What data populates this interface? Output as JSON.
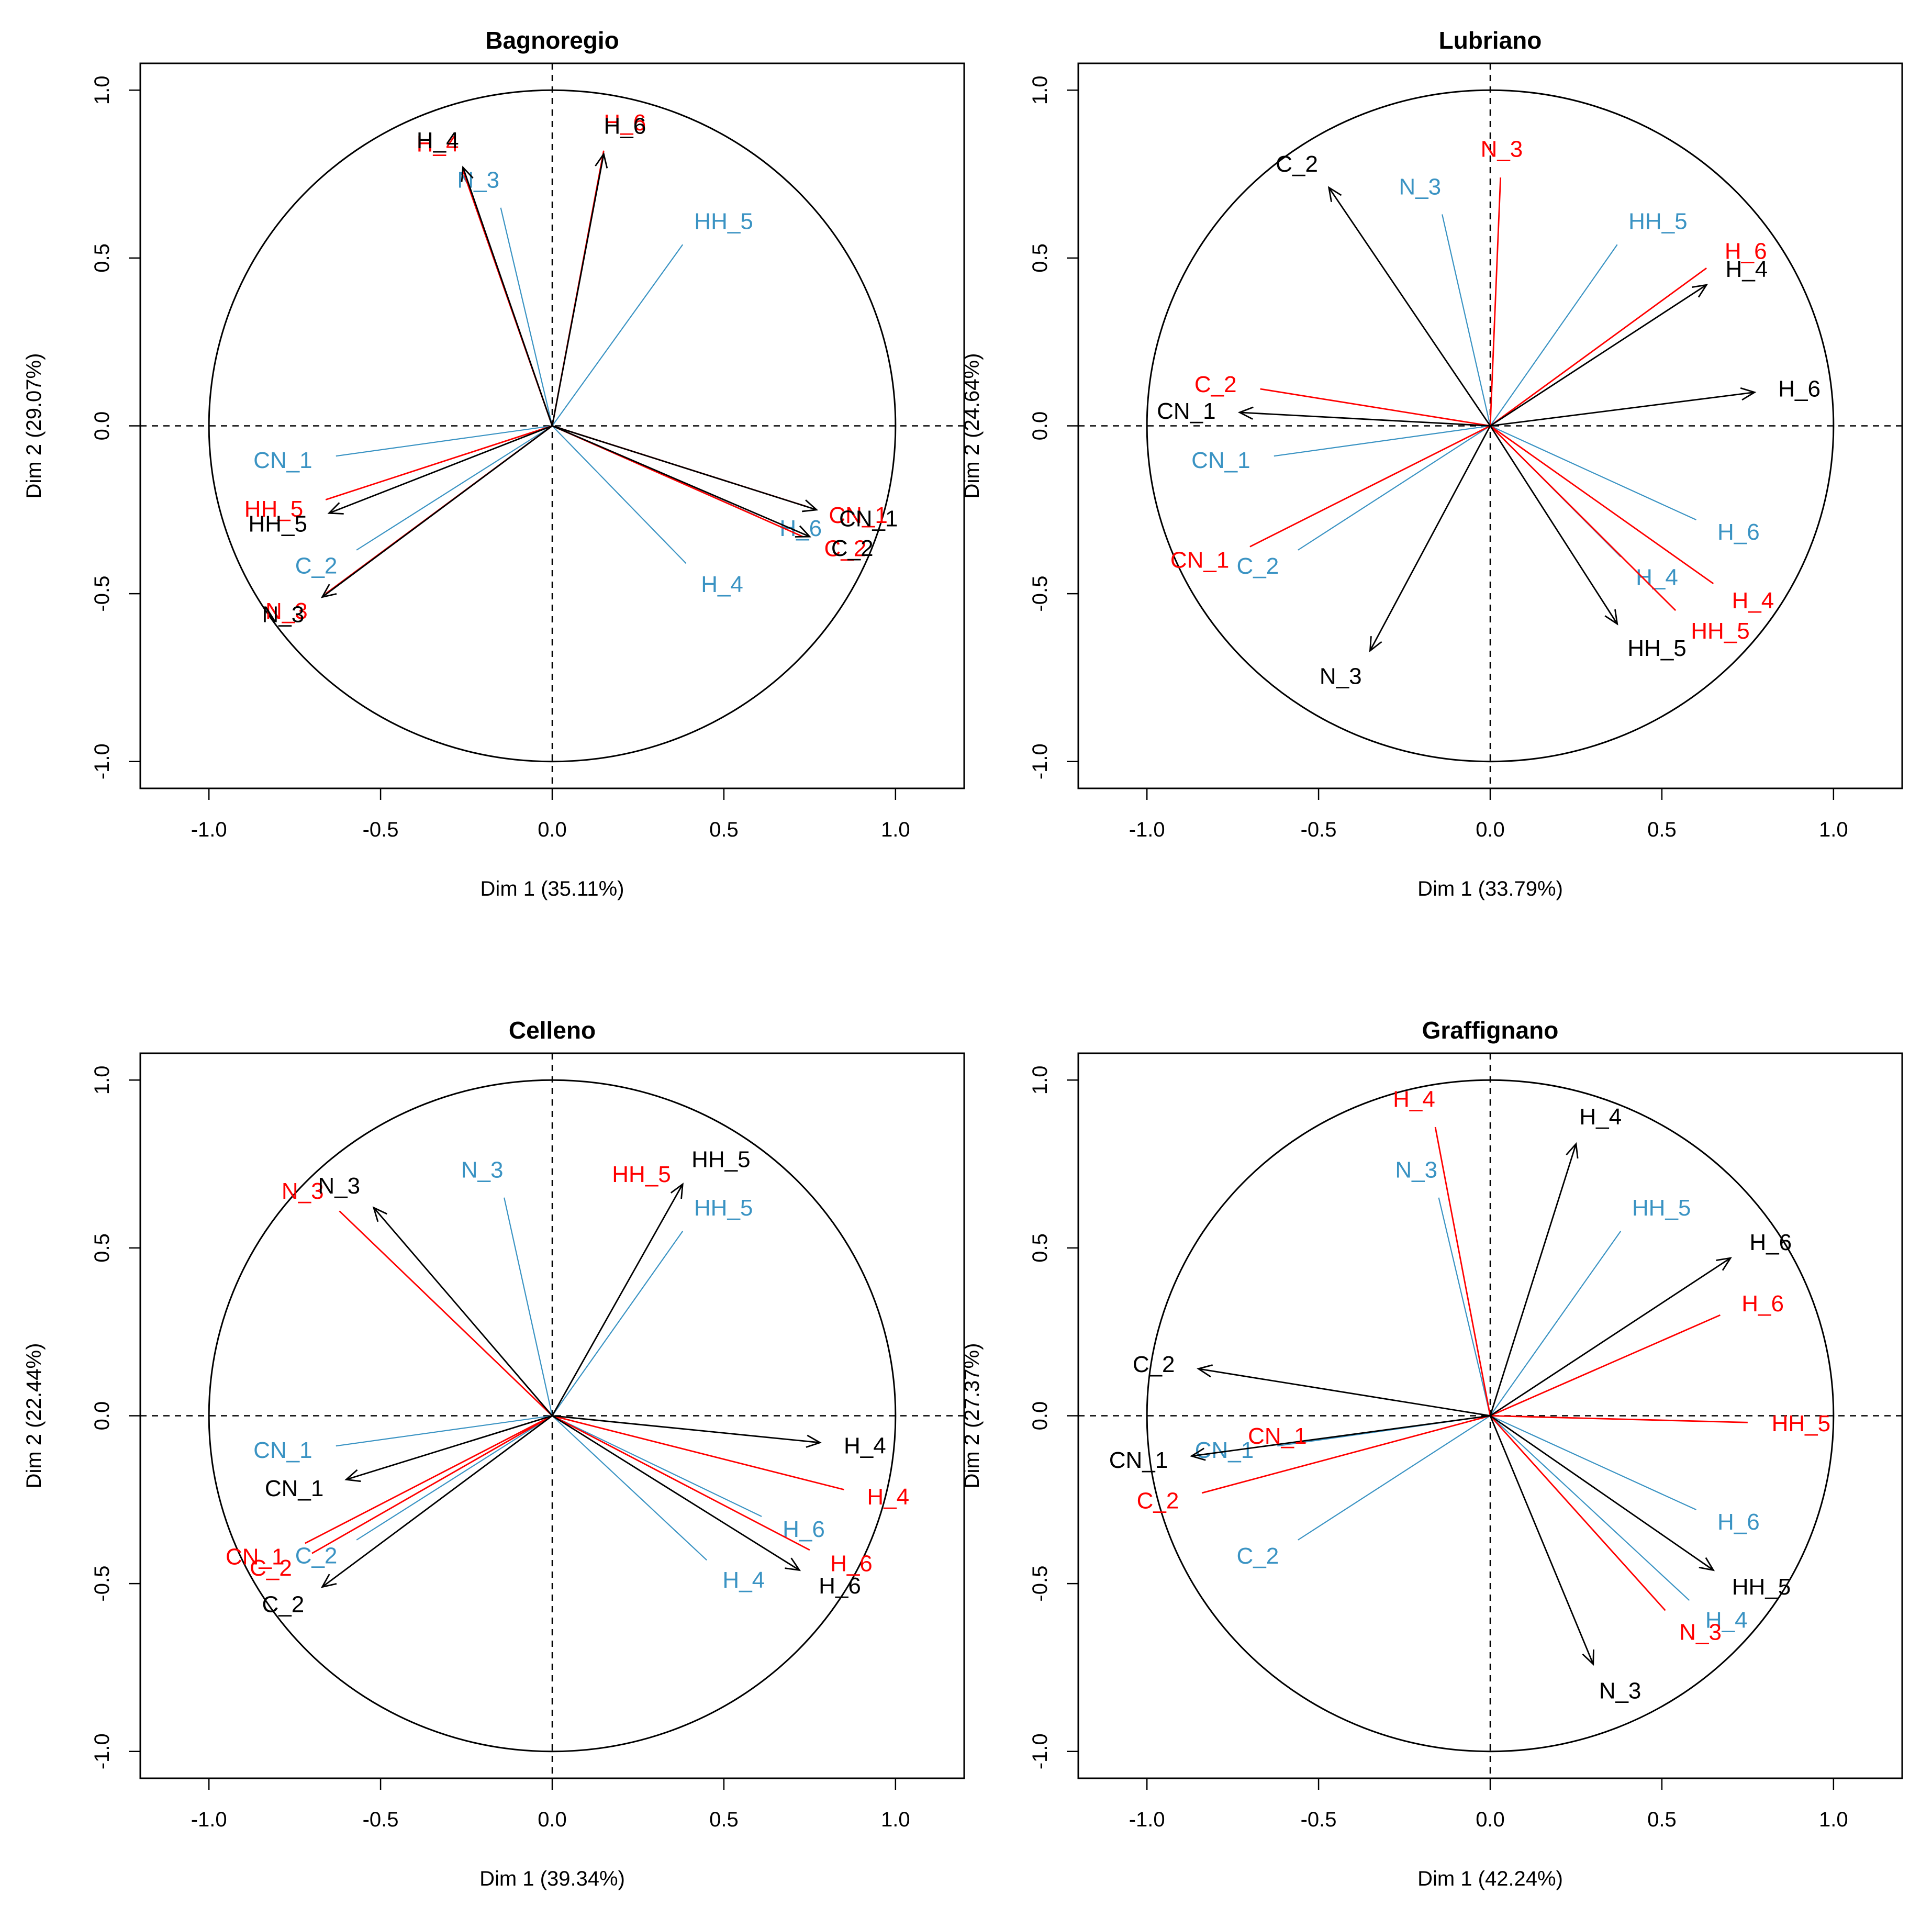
{
  "colors": {
    "series_black": "#000000",
    "series_red": "#ff0000",
    "series_blue": "#3a93c3"
  },
  "chart_data": [
    {
      "type": "scatter",
      "subtype": "pca-variables-factor-map",
      "title": "Bagnoregio",
      "xlabel": "Dim 1 (35.11%)",
      "ylabel": "Dim 2 (29.07%)",
      "xlim": [
        -1.2,
        1.2
      ],
      "ylim": [
        -1.08,
        1.08
      ],
      "xticks": [
        "-1.0",
        "-0.5",
        "0.0",
        "0.5",
        "1.0"
      ],
      "yticks": [
        "-1.0",
        "-0.5",
        "0.0",
        "0.5",
        "1.0"
      ],
      "unit_circle": true,
      "series": [
        {
          "name": "black",
          "color": "#000000",
          "arrows": true,
          "vectors": [
            {
              "label": "H_4",
              "x": -0.26,
              "y": 0.77
            },
            {
              "label": "H_6",
              "x": 0.15,
              "y": 0.81
            },
            {
              "label": "CN_1",
              "x": 0.77,
              "y": -0.25
            },
            {
              "label": "C_2",
              "x": 0.75,
              "y": -0.33
            },
            {
              "label": "HH_5",
              "x": -0.65,
              "y": -0.26
            },
            {
              "label": "N_3",
              "x": -0.67,
              "y": -0.51
            }
          ]
        },
        {
          "name": "red",
          "color": "#ff0000",
          "arrows": false,
          "vectors": [
            {
              "label": "H_4",
              "x": -0.26,
              "y": 0.76
            },
            {
              "label": "H_6",
              "x": 0.15,
              "y": 0.82
            },
            {
              "label": "CN_1",
              "x": 0.74,
              "y": -0.24
            },
            {
              "label": "C_2",
              "x": 0.73,
              "y": -0.33
            },
            {
              "label": "HH_5",
              "x": -0.66,
              "y": -0.22
            },
            {
              "label": "N_3",
              "x": -0.66,
              "y": -0.5
            }
          ]
        },
        {
          "name": "blue",
          "color": "#3a93c3",
          "arrows": false,
          "vectors": [
            {
              "label": "N_3",
              "x": -0.15,
              "y": 0.65
            },
            {
              "label": "HH_5",
              "x": 0.38,
              "y": 0.54
            },
            {
              "label": "CN_1",
              "x": -0.63,
              "y": -0.09
            },
            {
              "label": "C_2",
              "x": -0.57,
              "y": -0.37
            },
            {
              "label": "H_6",
              "x": 0.6,
              "y": -0.27
            },
            {
              "label": "H_4",
              "x": 0.39,
              "y": -0.41
            }
          ]
        }
      ]
    },
    {
      "type": "scatter",
      "subtype": "pca-variables-factor-map",
      "title": "Lubriano",
      "xlabel": "Dim 1 (33.79%)",
      "ylabel": "Dim 2 (24.64%)",
      "xlim": [
        -1.2,
        1.2
      ],
      "ylim": [
        -1.08,
        1.08
      ],
      "xticks": [
        "-1.0",
        "-0.5",
        "0.0",
        "0.5",
        "1.0"
      ],
      "yticks": [
        "-1.0",
        "-0.5",
        "0.0",
        "0.5",
        "1.0"
      ],
      "unit_circle": true,
      "series": [
        {
          "name": "black",
          "color": "#000000",
          "arrows": true,
          "vectors": [
            {
              "label": "C_2",
              "x": -0.47,
              "y": 0.71
            },
            {
              "label": "H_4",
              "x": 0.63,
              "y": 0.42
            },
            {
              "label": "H_6",
              "x": 0.77,
              "y": 0.1
            },
            {
              "label": "CN_1",
              "x": -0.73,
              "y": 0.04
            },
            {
              "label": "HH_5",
              "x": 0.37,
              "y": -0.59
            },
            {
              "label": "N_3",
              "x": -0.35,
              "y": -0.67
            }
          ]
        },
        {
          "name": "red",
          "color": "#ff0000",
          "arrows": false,
          "vectors": [
            {
              "label": "N_3",
              "x": 0.03,
              "y": 0.74
            },
            {
              "label": "H_6",
              "x": 0.63,
              "y": 0.47
            },
            {
              "label": "C_2",
              "x": -0.67,
              "y": 0.11
            },
            {
              "label": "CN_1",
              "x": -0.7,
              "y": -0.36
            },
            {
              "label": "H_4",
              "x": 0.65,
              "y": -0.47
            },
            {
              "label": "HH_5",
              "x": 0.54,
              "y": -0.55
            }
          ]
        },
        {
          "name": "blue",
          "color": "#3a93c3",
          "arrows": false,
          "vectors": [
            {
              "label": "N_3",
              "x": -0.14,
              "y": 0.63
            },
            {
              "label": "HH_5",
              "x": 0.37,
              "y": 0.54
            },
            {
              "label": "CN_1",
              "x": -0.63,
              "y": -0.09
            },
            {
              "label": "C_2",
              "x": -0.56,
              "y": -0.37
            },
            {
              "label": "H_6",
              "x": 0.6,
              "y": -0.28
            },
            {
              "label": "H_4",
              "x": 0.38,
              "y": -0.39
            }
          ]
        }
      ]
    },
    {
      "type": "scatter",
      "subtype": "pca-variables-factor-map",
      "title": "Celleno",
      "xlabel": "Dim 1 (39.34%)",
      "ylabel": "Dim 2 (22.44%)",
      "xlim": [
        -1.2,
        1.2
      ],
      "ylim": [
        -1.08,
        1.08
      ],
      "xticks": [
        "-1.0",
        "-0.5",
        "0.0",
        "0.5",
        "1.0"
      ],
      "yticks": [
        "-1.0",
        "-0.5",
        "0.0",
        "0.5",
        "1.0"
      ],
      "unit_circle": true,
      "series": [
        {
          "name": "black",
          "color": "#000000",
          "arrows": true,
          "vectors": [
            {
              "label": "N_3",
              "x": -0.52,
              "y": 0.62
            },
            {
              "label": "HH_5",
              "x": 0.38,
              "y": 0.69
            },
            {
              "label": "H_4",
              "x": 0.78,
              "y": -0.08
            },
            {
              "label": "CN_1",
              "x": -0.6,
              "y": -0.19
            },
            {
              "label": "C_2",
              "x": -0.67,
              "y": -0.51
            },
            {
              "label": "H_6",
              "x": 0.72,
              "y": -0.46
            }
          ]
        },
        {
          "name": "red",
          "color": "#ff0000",
          "arrows": false,
          "vectors": [
            {
              "label": "N_3",
              "x": -0.62,
              "y": 0.61
            },
            {
              "label": "H_4",
              "x": 0.85,
              "y": -0.22
            },
            {
              "label": "H_6",
              "x": 0.75,
              "y": -0.4
            },
            {
              "label": "CN_1",
              "x": -0.72,
              "y": -0.38
            },
            {
              "label": "C_2",
              "x": -0.7,
              "y": -0.41
            }
          ]
        },
        {
          "name": "blue",
          "color": "#3a93c3",
          "arrows": false,
          "vectors": [
            {
              "label": "N_3",
              "x": -0.14,
              "y": 0.65
            },
            {
              "label": "HH_5",
              "x": 0.38,
              "y": 0.55
            },
            {
              "label": "CN_1",
              "x": -0.63,
              "y": -0.09
            },
            {
              "label": "C_2",
              "x": -0.57,
              "y": -0.37
            },
            {
              "label": "H_6",
              "x": 0.61,
              "y": -0.3
            },
            {
              "label": "H_4",
              "x": 0.45,
              "y": -0.43
            }
          ]
        }
      ],
      "extra_labels": [
        {
          "label": "HH_5",
          "color": "#ff0000",
          "x": 0.26,
          "y": 0.72
        }
      ]
    },
    {
      "type": "scatter",
      "subtype": "pca-variables-factor-map",
      "title": "Graffignano",
      "xlabel": "Dim 1 (42.24%)",
      "ylabel": "Dim 2 (27.37%)",
      "xlim": [
        -1.2,
        1.2
      ],
      "ylim": [
        -1.08,
        1.08
      ],
      "xticks": [
        "-1.0",
        "-0.5",
        "0.0",
        "0.5",
        "1.0"
      ],
      "yticks": [
        "-1.0",
        "-0.5",
        "0.0",
        "0.5",
        "1.0"
      ],
      "unit_circle": true,
      "series": [
        {
          "name": "black",
          "color": "#000000",
          "arrows": true,
          "vectors": [
            {
              "label": "H_4",
              "x": 0.25,
              "y": 0.81
            },
            {
              "label": "H_6",
              "x": 0.7,
              "y": 0.47
            },
            {
              "label": "C_2",
              "x": -0.85,
              "y": 0.14
            },
            {
              "label": "CN_1",
              "x": -0.87,
              "y": -0.12
            },
            {
              "label": "HH_5",
              "x": 0.65,
              "y": -0.46
            },
            {
              "label": "N_3",
              "x": 0.3,
              "y": -0.74
            }
          ]
        },
        {
          "name": "red",
          "color": "#ff0000",
          "arrows": false,
          "vectors": [
            {
              "label": "H_4",
              "x": -0.16,
              "y": 0.86
            },
            {
              "label": "H_6",
              "x": 0.67,
              "y": 0.3
            },
            {
              "label": "HH_5",
              "x": 0.75,
              "y": -0.02
            },
            {
              "label": "C_2",
              "x": -0.84,
              "y": -0.23
            },
            {
              "label": "N_3",
              "x": 0.51,
              "y": -0.58
            }
          ]
        },
        {
          "name": "blue",
          "color": "#3a93c3",
          "arrows": false,
          "vectors": [
            {
              "label": "N_3",
              "x": -0.15,
              "y": 0.65
            },
            {
              "label": "HH_5",
              "x": 0.38,
              "y": 0.55
            },
            {
              "label": "CN_1",
              "x": -0.62,
              "y": -0.09
            },
            {
              "label": "C_2",
              "x": -0.56,
              "y": -0.37
            },
            {
              "label": "H_6",
              "x": 0.6,
              "y": -0.28
            },
            {
              "label": "H_4",
              "x": 0.58,
              "y": -0.55
            }
          ]
        }
      ],
      "extra_labels": [
        {
          "label": "CN_1",
          "color": "#ff0000",
          "x": -0.62,
          "y": -0.06
        }
      ]
    }
  ]
}
